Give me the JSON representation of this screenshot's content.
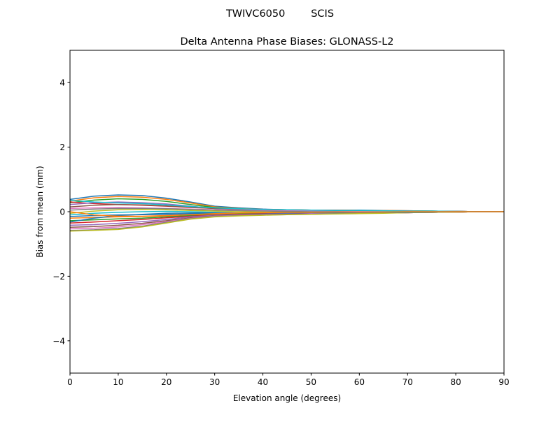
{
  "chart_data": {
    "type": "line",
    "suptitle": "TWIVC6050        SCIS",
    "title": "Delta Antenna Phase Biases: GLONASS-L2",
    "xlabel": "Elevation angle (degrees)",
    "ylabel": "Bias from mean (mm)",
    "xlim": [
      0,
      90
    ],
    "ylim": [
      -5,
      5
    ],
    "xticks": [
      0,
      10,
      20,
      30,
      40,
      50,
      60,
      70,
      80,
      90
    ],
    "yticks": [
      -4,
      -2,
      0,
      2,
      4
    ],
    "ytick_labels": [
      "−4",
      "−2",
      "0",
      "2",
      "4"
    ],
    "grid": false,
    "colors": [
      "#1f77b4",
      "#ff7f0e",
      "#2ca02c",
      "#d62728",
      "#9467bd",
      "#8c564b",
      "#e377c2",
      "#7f7f7f",
      "#bcbd22",
      "#17becf"
    ],
    "x": [
      0,
      5,
      10,
      15,
      20,
      25,
      30,
      35,
      40,
      45,
      50,
      55,
      60,
      65,
      70,
      75,
      80,
      85,
      90
    ],
    "series": [
      {
        "values": [
          0.38,
          0.48,
          0.52,
          0.5,
          0.42,
          0.3,
          0.17,
          0.12,
          0.08,
          0.06,
          0.05,
          0.05,
          0.05,
          0.04,
          0.03,
          0.02,
          0.01,
          0.0,
          0.0
        ]
      },
      {
        "values": [
          0.33,
          0.43,
          0.47,
          0.45,
          0.38,
          0.27,
          0.15,
          0.1,
          0.07,
          0.06,
          0.05,
          0.05,
          0.04,
          0.04,
          0.03,
          0.02,
          0.01,
          0.0,
          0.0
        ]
      },
      {
        "values": [
          0.28,
          0.36,
          0.4,
          0.38,
          0.32,
          0.22,
          0.13,
          0.09,
          0.06,
          0.05,
          0.04,
          0.04,
          0.04,
          0.03,
          0.02,
          0.02,
          0.01,
          0.0,
          0.0
        ]
      },
      {
        "values": [
          0.3,
          0.25,
          0.22,
          0.2,
          0.17,
          0.13,
          0.1,
          0.08,
          0.06,
          0.05,
          0.04,
          0.04,
          0.03,
          0.03,
          0.02,
          0.01,
          0.01,
          0.0,
          0.0
        ]
      },
      {
        "values": [
          0.22,
          0.28,
          0.3,
          0.28,
          0.24,
          0.17,
          0.1,
          0.07,
          0.05,
          0.04,
          0.04,
          0.03,
          0.03,
          0.03,
          0.02,
          0.01,
          0.01,
          0.0,
          0.0
        ]
      },
      {
        "values": [
          0.15,
          0.2,
          0.22,
          0.21,
          0.18,
          0.14,
          0.1,
          0.08,
          0.07,
          0.06,
          0.05,
          0.05,
          0.04,
          0.03,
          0.02,
          0.02,
          0.01,
          0.0,
          0.0
        ]
      },
      {
        "values": [
          0.1,
          0.12,
          0.13,
          0.12,
          0.1,
          0.08,
          0.06,
          0.05,
          0.04,
          0.03,
          0.03,
          0.03,
          0.02,
          0.02,
          0.02,
          0.01,
          0.0,
          0.0,
          0.0
        ]
      },
      {
        "values": [
          0.05,
          0.08,
          0.1,
          0.1,
          0.09,
          0.07,
          0.05,
          0.03,
          0.02,
          0.01,
          0.0,
          0.0,
          -0.01,
          -0.01,
          -0.01,
          0.0,
          0.0,
          0.0,
          0.0
        ]
      },
      {
        "values": [
          -0.05,
          0.02,
          0.06,
          0.07,
          0.06,
          0.04,
          0.02,
          0.0,
          -0.01,
          -0.02,
          -0.03,
          -0.03,
          -0.03,
          -0.02,
          -0.02,
          -0.01,
          0.0,
          0.0,
          0.0
        ]
      },
      {
        "values": [
          -0.1,
          -0.05,
          -0.02,
          0.0,
          0.01,
          0.0,
          -0.02,
          -0.04,
          -0.05,
          -0.05,
          -0.05,
          -0.04,
          -0.03,
          -0.03,
          -0.02,
          -0.01,
          0.0,
          0.0,
          0.0
        ]
      },
      {
        "values": [
          -0.15,
          -0.12,
          -0.1,
          -0.09,
          -0.08,
          -0.07,
          -0.06,
          -0.05,
          -0.05,
          -0.04,
          -0.04,
          -0.03,
          -0.03,
          -0.02,
          -0.02,
          -0.01,
          -0.01,
          0.0,
          0.0
        ]
      },
      {
        "values": [
          -0.2,
          -0.18,
          -0.16,
          -0.15,
          -0.13,
          -0.1,
          -0.08,
          -0.07,
          -0.06,
          -0.05,
          -0.04,
          -0.04,
          -0.03,
          -0.03,
          -0.02,
          -0.01,
          -0.01,
          0.0,
          0.0
        ]
      },
      {
        "values": [
          -0.28,
          -0.25,
          -0.22,
          -0.2,
          -0.16,
          -0.12,
          -0.09,
          -0.07,
          -0.06,
          -0.05,
          -0.05,
          -0.04,
          -0.04,
          -0.03,
          -0.02,
          -0.02,
          -0.01,
          0.0,
          0.0
        ]
      },
      {
        "values": [
          -0.35,
          -0.32,
          -0.28,
          -0.24,
          -0.19,
          -0.14,
          -0.1,
          -0.08,
          -0.07,
          -0.06,
          -0.05,
          -0.05,
          -0.04,
          -0.03,
          -0.03,
          -0.02,
          -0.01,
          0.0,
          0.0
        ]
      },
      {
        "values": [
          -0.42,
          -0.4,
          -0.36,
          -0.31,
          -0.24,
          -0.16,
          -0.11,
          -0.09,
          -0.08,
          -0.07,
          -0.06,
          -0.05,
          -0.05,
          -0.04,
          -0.03,
          -0.02,
          -0.01,
          0.0,
          0.0
        ]
      },
      {
        "values": [
          -0.48,
          -0.46,
          -0.42,
          -0.36,
          -0.28,
          -0.19,
          -0.13,
          -0.1,
          -0.09,
          -0.08,
          -0.07,
          -0.06,
          -0.05,
          -0.04,
          -0.03,
          -0.02,
          -0.01,
          0.0,
          0.0
        ]
      },
      {
        "values": [
          -0.53,
          -0.51,
          -0.47,
          -0.4,
          -0.31,
          -0.21,
          -0.14,
          -0.11,
          -0.1,
          -0.09,
          -0.07,
          -0.06,
          -0.05,
          -0.04,
          -0.03,
          -0.02,
          -0.01,
          0.0,
          0.0
        ]
      },
      {
        "values": [
          -0.58,
          -0.56,
          -0.52,
          -0.45,
          -0.33,
          -0.22,
          -0.15,
          -0.12,
          -0.1,
          -0.09,
          -0.08,
          -0.06,
          -0.05,
          -0.04,
          -0.03,
          -0.02,
          -0.01,
          0.0,
          0.0
        ]
      },
      {
        "values": [
          -0.6,
          -0.58,
          -0.55,
          -0.47,
          -0.35,
          -0.23,
          -0.16,
          -0.13,
          -0.11,
          -0.09,
          -0.08,
          -0.07,
          -0.06,
          -0.05,
          -0.03,
          -0.02,
          -0.01,
          0.0,
          0.0
        ]
      },
      {
        "values": [
          0.35,
          0.3,
          0.27,
          0.25,
          0.21,
          0.16,
          0.12,
          0.09,
          0.07,
          0.06,
          0.05,
          0.04,
          0.04,
          0.03,
          0.02,
          0.02,
          0.01,
          0.0,
          0.0
        ]
      },
      {
        "values": [
          -0.32,
          -0.2,
          -0.12,
          -0.08,
          -0.05,
          -0.04,
          -0.04,
          -0.04,
          -0.04,
          -0.04,
          -0.03,
          -0.03,
          -0.02,
          -0.02,
          -0.02,
          -0.01,
          0.0,
          0.0,
          0.0
        ]
      },
      {
        "values": [
          0.0,
          -0.1,
          -0.14,
          -0.14,
          -0.12,
          -0.09,
          -0.06,
          -0.04,
          -0.03,
          -0.02,
          -0.02,
          -0.01,
          -0.01,
          -0.01,
          0.0,
          0.0,
          0.0,
          0.0,
          0.0
        ]
      }
    ]
  }
}
